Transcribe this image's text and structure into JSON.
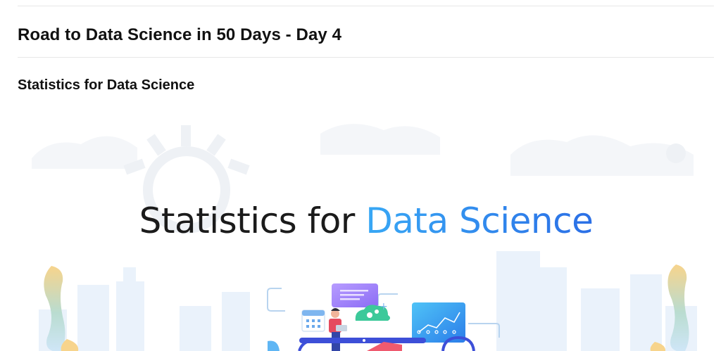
{
  "post": {
    "title": "Road to Data Science in 50 Days - Day 4",
    "section_heading": "Statistics for Data Science"
  },
  "banner": {
    "heading_part1": "Statistics for ",
    "heading_part2": "Data Science",
    "colors": {
      "heading_dark": "#1b1b1b",
      "heading_blue": "#2f7dea",
      "skyline": "#eaf2fb",
      "accent_purple": "#a78bfa",
      "accent_green": "#34d399",
      "accent_blue": "#3ba4f5",
      "accent_red": "#ef5a6f",
      "accent_yellow": "#f5d38a"
    },
    "icons": [
      "gear-icon",
      "calendar-icon",
      "cloud-icon",
      "chart-card-icon",
      "message-card-icon",
      "person-icon",
      "plant-icon"
    ]
  }
}
